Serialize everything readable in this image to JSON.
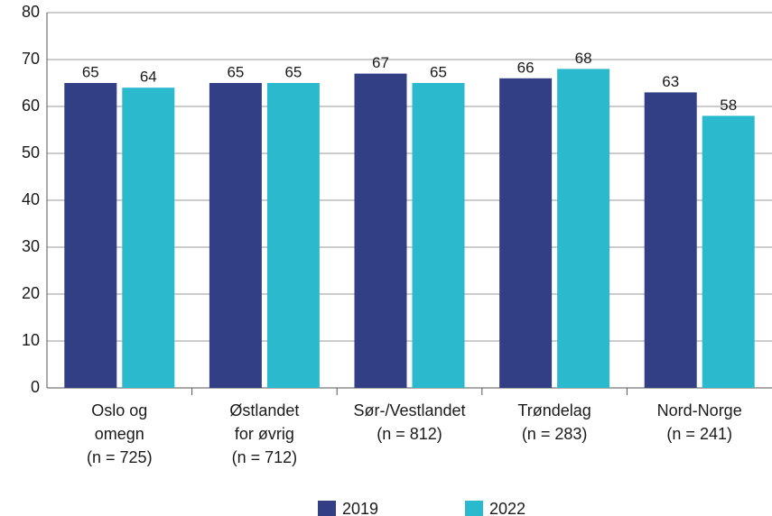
{
  "chart_data": {
    "type": "bar",
    "categories": [
      [
        "Oslo og",
        "omegn",
        "(n = 725)"
      ],
      [
        "Østlandet",
        "for øvrig",
        "(n = 712)"
      ],
      [
        "Sør-/Vestlandet",
        "(n = 812)"
      ],
      [
        "Trøndelag",
        "(n = 283)"
      ],
      [
        "Nord-Norge",
        "(n = 241)"
      ]
    ],
    "series": [
      {
        "name": "2019",
        "color": "#333f85",
        "values": [
          65,
          65,
          67,
          66,
          63
        ]
      },
      {
        "name": "2022",
        "color": "#2bb9cd",
        "values": [
          64,
          65,
          65,
          68,
          58
        ]
      }
    ],
    "ylim": [
      0,
      80
    ],
    "yticks": [
      0,
      10,
      20,
      30,
      40,
      50,
      60,
      70,
      80
    ],
    "grid": true
  }
}
